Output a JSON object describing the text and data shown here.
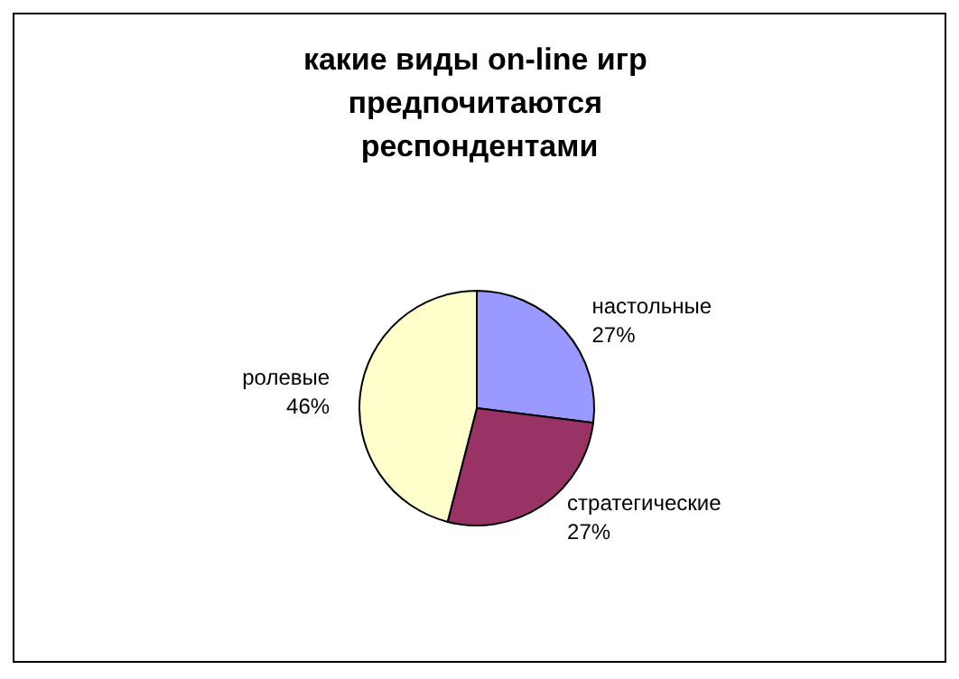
{
  "chart_data": {
    "type": "pie",
    "title": "какие виды on-line игр предпочитаются респондентами",
    "categories": [
      "настольные",
      "стратегические",
      "ролевые"
    ],
    "values": [
      27,
      27,
      46
    ],
    "value_labels": [
      "27%",
      "27%",
      "46%"
    ],
    "colors": [
      "#9999ff",
      "#993366",
      "#ffffcc"
    ]
  }
}
